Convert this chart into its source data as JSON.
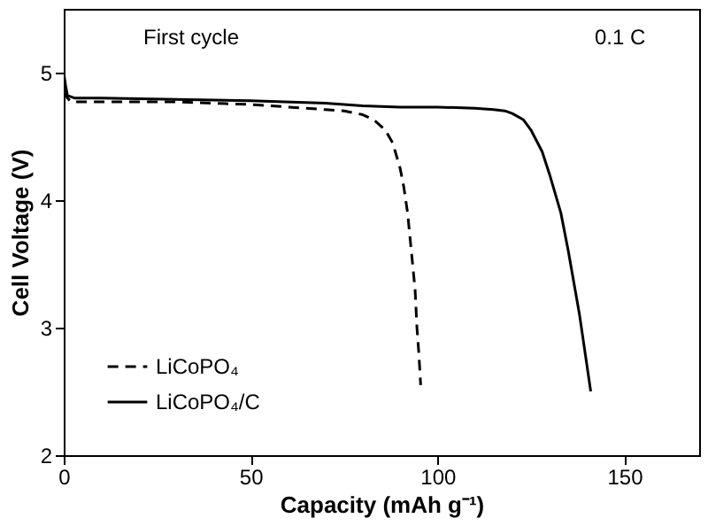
{
  "chart_data": {
    "type": "line",
    "xlabel": "Capacity (mAh g⁻¹)",
    "ylabel": "Cell Voltage (V)",
    "xlim": [
      0,
      170
    ],
    "ylim": [
      2,
      5.5
    ],
    "xticks": [
      0,
      50,
      100,
      150
    ],
    "yticks": [
      2,
      3,
      4,
      5
    ],
    "grid": false,
    "legend": "bottom left",
    "annotations": [
      "First cycle",
      "0.1 C"
    ],
    "series": [
      {
        "name": "LiCoPO₄",
        "color": "#000000",
        "line_style": "dashed",
        "x": [
          0,
          1,
          2,
          10,
          30,
          50,
          60,
          70,
          75,
          80,
          83,
          86,
          88,
          90,
          91,
          92,
          93,
          94,
          94.5,
          95,
          95.5
        ],
        "values": [
          4.85,
          4.8,
          4.77,
          4.77,
          4.77,
          4.75,
          4.73,
          4.71,
          4.7,
          4.67,
          4.63,
          4.55,
          4.45,
          4.25,
          4.1,
          3.9,
          3.6,
          3.3,
          3.0,
          2.8,
          2.55
        ]
      },
      {
        "name": "LiCoPO₄/C",
        "color": "#000000",
        "line_style": "solid",
        "x": [
          0,
          0.5,
          1,
          3,
          10,
          30,
          50,
          70,
          80,
          90,
          100,
          110,
          115,
          118,
          120,
          123,
          125,
          128,
          130,
          133,
          135,
          138,
          141
        ],
        "values": [
          5.0,
          4.9,
          4.82,
          4.8,
          4.8,
          4.79,
          4.78,
          4.76,
          4.74,
          4.73,
          4.73,
          4.72,
          4.71,
          4.7,
          4.68,
          4.63,
          4.55,
          4.38,
          4.2,
          3.9,
          3.6,
          3.1,
          2.5
        ]
      }
    ]
  }
}
